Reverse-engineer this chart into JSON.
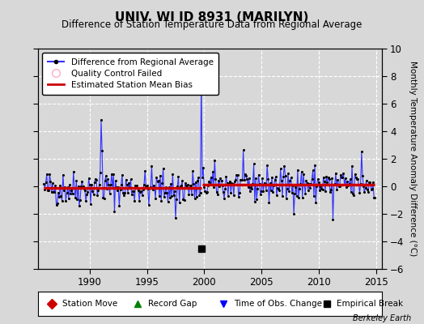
{
  "title": "UNIV. WI ID 8931 (MARILYN)",
  "subtitle": "Difference of Station Temperature Data from Regional Average",
  "ylabel_right": "Monthly Temperature Anomaly Difference (°C)",
  "xlim": [
    1985.5,
    2015.5
  ],
  "ylim": [
    -6,
    10
  ],
  "yticks": [
    -6,
    -4,
    -2,
    0,
    2,
    4,
    6,
    8,
    10
  ],
  "xticks": [
    1990,
    1995,
    2000,
    2005,
    2010,
    2015
  ],
  "bg_color": "#d8d8d8",
  "plot_bg_color": "#d8d8d8",
  "grid_color": "#ffffff",
  "line_color": "#3333ff",
  "marker_color": "#000000",
  "bias_color": "#cc0000",
  "empirical_break_x": 1999.75,
  "empirical_break_y": -4.55,
  "bias_before": -0.12,
  "bias_after": 0.12,
  "bias_break_x": 1999.75,
  "watermark": "Berkeley Earth",
  "seed": 42,
  "start_year": 1986.0,
  "end_year": 2015.0
}
